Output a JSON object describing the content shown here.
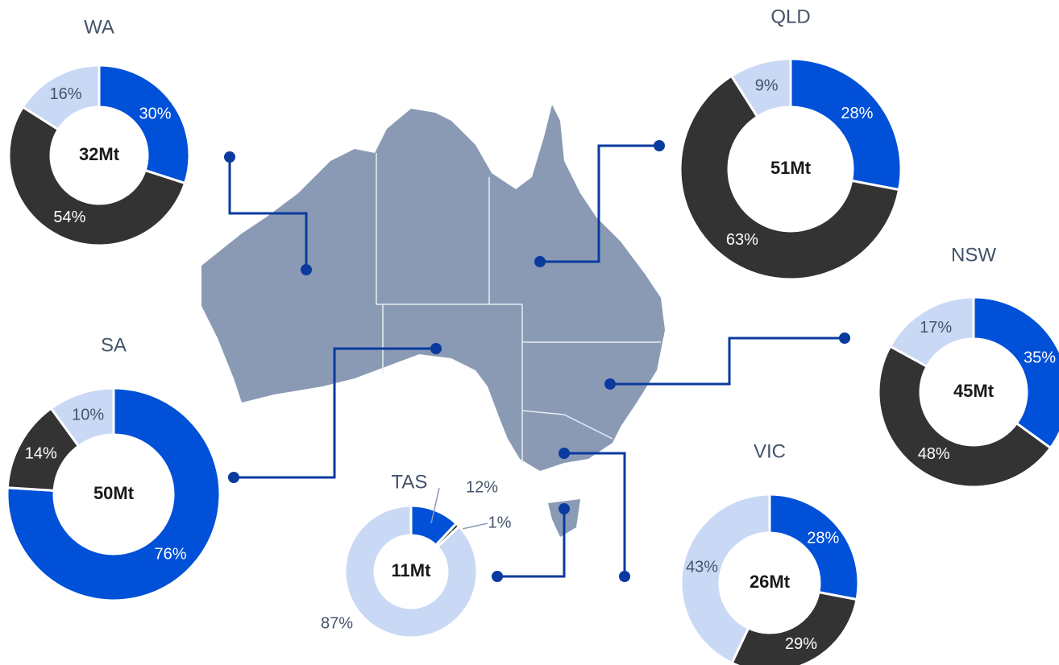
{
  "chart_data": [
    {
      "type": "donut",
      "title": "WA",
      "center_label": "32Mt",
      "values": [
        30,
        54,
        16
      ],
      "value_labels": [
        "30%",
        "54%",
        "16%"
      ],
      "colors": [
        "#0050d8",
        "#333333",
        "#c9d9f5"
      ]
    },
    {
      "type": "donut",
      "title": "QLD",
      "center_label": "51Mt",
      "values": [
        28,
        63,
        9
      ],
      "value_labels": [
        "28%",
        "63%",
        "9%"
      ],
      "colors": [
        "#0050d8",
        "#333333",
        "#c9d9f5"
      ]
    },
    {
      "type": "donut",
      "title": "NSW",
      "center_label": "45Mt",
      "values": [
        35,
        48,
        17
      ],
      "value_labels": [
        "35%",
        "48%",
        "17%"
      ],
      "colors": [
        "#0050d8",
        "#333333",
        "#c9d9f5"
      ]
    },
    {
      "type": "donut",
      "title": "SA",
      "center_label": "50Mt",
      "values": [
        76,
        14,
        10
      ],
      "value_labels": [
        "76%",
        "14%",
        "10%"
      ],
      "colors": [
        "#0050d8",
        "#333333",
        "#c9d9f5"
      ]
    },
    {
      "type": "donut",
      "title": "VIC",
      "center_label": "26Mt",
      "values": [
        28,
        29,
        43
      ],
      "value_labels": [
        "28%",
        "29%",
        "43%"
      ],
      "colors": [
        "#0050d8",
        "#333333",
        "#c9d9f5"
      ]
    },
    {
      "type": "donut",
      "title": "TAS",
      "center_label": "11Mt",
      "values": [
        12,
        1,
        87
      ],
      "value_labels": [
        "12%",
        "1%",
        "87%"
      ],
      "colors": [
        "#0050d8",
        "#333333",
        "#c9d9f5"
      ]
    }
  ]
}
